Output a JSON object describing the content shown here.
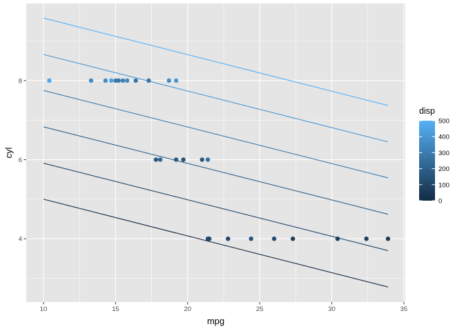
{
  "chart_data": {
    "type": "scatter",
    "xlabel": "mpg",
    "ylabel": "cyl",
    "xlim": [
      8.8,
      35.1
    ],
    "ylim": [
      2.4,
      9.95
    ],
    "x_ticks": [
      10,
      15,
      20,
      25,
      30,
      35
    ],
    "x_tick_labels": [
      "10",
      "15",
      "20",
      "25",
      "30",
      "35"
    ],
    "y_ticks": [
      4,
      6,
      8
    ],
    "y_tick_labels": [
      "4",
      "6",
      "8"
    ],
    "grid": true,
    "panel_background": "#e5e5e5",
    "grid_color": "#ffffff",
    "color_scale": {
      "title": "disp",
      "low_color": "#132b43",
      "high_color": "#56b1f7",
      "domain": [
        71.1,
        472
      ],
      "breaks": [
        0,
        100,
        200,
        300,
        400,
        500
      ],
      "break_labels": [
        "0",
        "100",
        "200",
        "300",
        "400",
        "500"
      ],
      "legend_position": "right"
    },
    "points": [
      {
        "x": 10.4,
        "y": 8,
        "disp": 460
      },
      {
        "x": 13.3,
        "y": 8,
        "disp": 350
      },
      {
        "x": 14.3,
        "y": 8,
        "disp": 360
      },
      {
        "x": 14.7,
        "y": 8,
        "disp": 440
      },
      {
        "x": 15.0,
        "y": 8,
        "disp": 301
      },
      {
        "x": 15.2,
        "y": 8,
        "disp": 276
      },
      {
        "x": 15.5,
        "y": 8,
        "disp": 318
      },
      {
        "x": 15.8,
        "y": 8,
        "disp": 351
      },
      {
        "x": 16.4,
        "y": 8,
        "disp": 276
      },
      {
        "x": 17.3,
        "y": 8,
        "disp": 276
      },
      {
        "x": 18.7,
        "y": 8,
        "disp": 360
      },
      {
        "x": 19.2,
        "y": 8,
        "disp": 400
      },
      {
        "x": 17.8,
        "y": 6,
        "disp": 168
      },
      {
        "x": 18.1,
        "y": 6,
        "disp": 225
      },
      {
        "x": 19.2,
        "y": 6,
        "disp": 168
      },
      {
        "x": 19.7,
        "y": 6,
        "disp": 145
      },
      {
        "x": 21.0,
        "y": 6,
        "disp": 160
      },
      {
        "x": 21.4,
        "y": 6,
        "disp": 258
      },
      {
        "x": 21.4,
        "y": 4,
        "disp": 121
      },
      {
        "x": 21.5,
        "y": 4,
        "disp": 120
      },
      {
        "x": 22.8,
        "y": 4,
        "disp": 108
      },
      {
        "x": 24.4,
        "y": 4,
        "disp": 147
      },
      {
        "x": 26.0,
        "y": 4,
        "disp": 120
      },
      {
        "x": 27.3,
        "y": 4,
        "disp": 79
      },
      {
        "x": 30.4,
        "y": 4,
        "disp": 76
      },
      {
        "x": 32.4,
        "y": 4,
        "disp": 79
      },
      {
        "x": 33.9,
        "y": 4,
        "disp": 71
      }
    ],
    "lines": [
      {
        "disp": 0,
        "x": [
          10,
          33.9
        ],
        "y": [
          5.0,
          2.78
        ]
      },
      {
        "disp": 100,
        "x": [
          10,
          33.9
        ],
        "y": [
          5.91,
          3.7
        ]
      },
      {
        "disp": 200,
        "x": [
          10,
          33.9
        ],
        "y": [
          6.83,
          4.62
        ]
      },
      {
        "disp": 300,
        "x": [
          10,
          33.9
        ],
        "y": [
          7.75,
          5.54
        ]
      },
      {
        "disp": 400,
        "x": [
          10,
          33.9
        ],
        "y": [
          8.66,
          6.45
        ]
      },
      {
        "disp": 500,
        "x": [
          10,
          33.9
        ],
        "y": [
          9.58,
          7.37
        ]
      }
    ]
  }
}
